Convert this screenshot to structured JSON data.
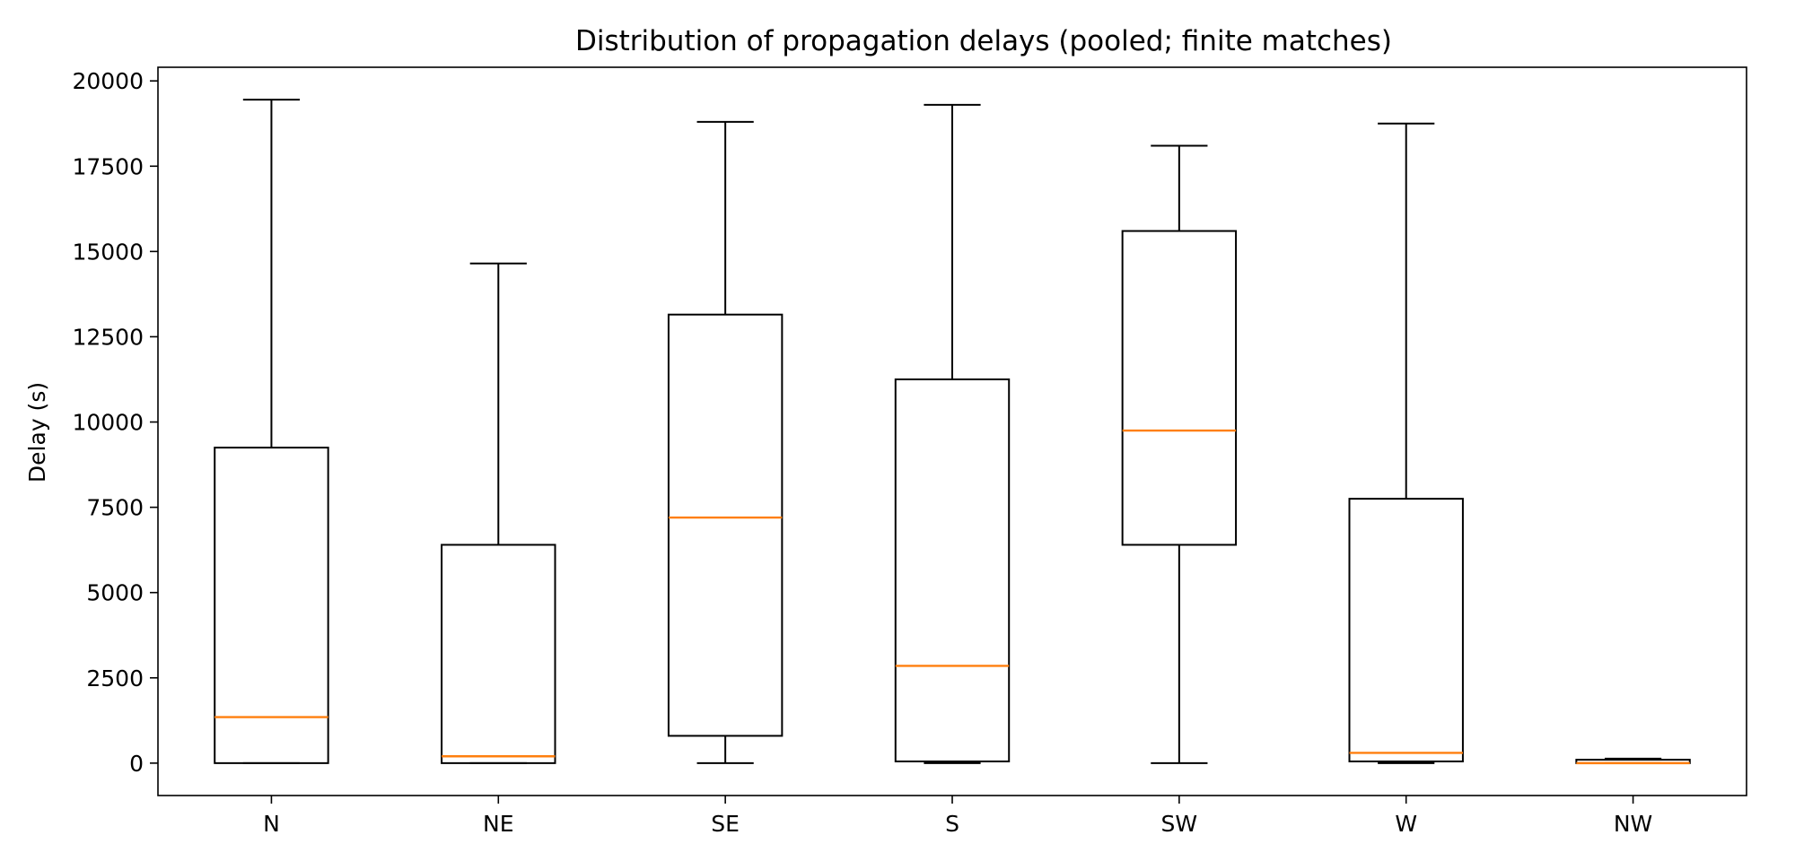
{
  "chart_data": {
    "type": "box",
    "title": "Distribution of propagation delays (pooled; finite matches)",
    "xlabel": "",
    "ylabel": "Delay (s)",
    "ylim": [
      -950,
      20400
    ],
    "yticks": [
      0,
      2500,
      5000,
      7500,
      10000,
      12500,
      15000,
      17500,
      20000
    ],
    "categories": [
      "N",
      "NE",
      "SE",
      "S",
      "SW",
      "W",
      "NW"
    ],
    "boxes": [
      {
        "label": "N",
        "whisker_low": 0,
        "q1": 0,
        "median": 1350,
        "q3": 9250,
        "whisker_high": 19450
      },
      {
        "label": "NE",
        "whisker_low": 0,
        "q1": 0,
        "median": 200,
        "q3": 6400,
        "whisker_high": 14650
      },
      {
        "label": "SE",
        "whisker_low": 0,
        "q1": 800,
        "median": 7200,
        "q3": 13150,
        "whisker_high": 18800
      },
      {
        "label": "S",
        "whisker_low": 0,
        "q1": 50,
        "median": 2850,
        "q3": 11250,
        "whisker_high": 19300
      },
      {
        "label": "SW",
        "whisker_low": 0,
        "q1": 6400,
        "median": 9750,
        "q3": 15600,
        "whisker_high": 18100
      },
      {
        "label": "W",
        "whisker_low": 0,
        "q1": 50,
        "median": 300,
        "q3": 7750,
        "whisker_high": 18750
      },
      {
        "label": "NW",
        "whisker_low": 0,
        "q1": 0,
        "median": 0,
        "q3": 100,
        "whisker_high": 130
      }
    ],
    "grid": false,
    "legend": "none",
    "colors": {
      "box": "#000000",
      "median": "#ff7f0e",
      "background": "#ffffff"
    }
  }
}
